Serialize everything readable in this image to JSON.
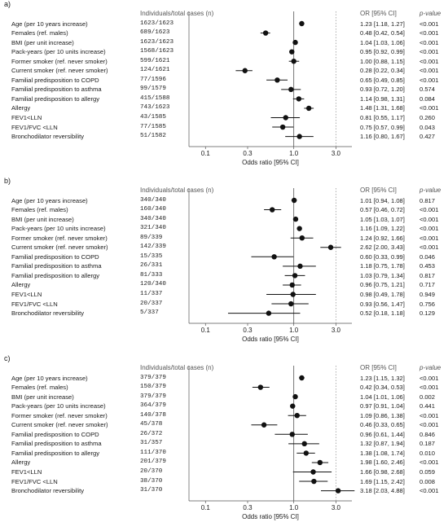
{
  "labels": {
    "col_individuals": "Individuals/total cases (n)",
    "col_or": "OR [95% CI]",
    "col_p": "p-value",
    "xlabel": "Odds ratio [95% CI]"
  },
  "colors": {
    "point": "#111111",
    "reference": "#555555",
    "dotted": "#9a9a9a"
  },
  "chart_data": [
    {
      "panel": "a)",
      "type": "forest",
      "x_scale": "log",
      "xlim": [
        0.1,
        3.0
      ],
      "xticks": [
        "0.1",
        "0.3",
        "1.0",
        "3.0"
      ],
      "xlabel": "Odds ratio [95% CI]",
      "rows": [
        {
          "label": "Age (per 10 years increase)",
          "n": "1623/1623",
          "or": 1.23,
          "lo": 1.18,
          "hi": 1.27,
          "or_text": "1.23 [1.18, 1.27]",
          "p": "<0.001"
        },
        {
          "label": "Females (ref. males)",
          "n": "689/1623",
          "or": 0.48,
          "lo": 0.42,
          "hi": 0.54,
          "or_text": "0.48 [0.42, 0.54]",
          "p": "<0.001"
        },
        {
          "label": "BMI (per unit increase)",
          "n": "1623/1623",
          "or": 1.04,
          "lo": 1.03,
          "hi": 1.06,
          "or_text": "1.04 [1.03, 1.06]",
          "p": "<0.001"
        },
        {
          "label": "Pack-years (per 10 units increase)",
          "n": "1568/1623",
          "or": 0.95,
          "lo": 0.92,
          "hi": 0.99,
          "or_text": "0.95 [0.92, 0.99]",
          "p": "<0.001"
        },
        {
          "label": "Former smoker (ref. never smoker)",
          "n": "599/1621",
          "or": 1.0,
          "lo": 0.88,
          "hi": 1.15,
          "or_text": "1.00 [0.88, 1.15]",
          "p": "<0.001"
        },
        {
          "label": "Current smoker (ref. never smoker)",
          "n": "124/1621",
          "or": 0.28,
          "lo": 0.22,
          "hi": 0.34,
          "or_text": "0.28 [0.22, 0.34]",
          "p": "<0.001"
        },
        {
          "label": "Familial predisposition to COPD",
          "n": "77/1596",
          "or": 0.65,
          "lo": 0.49,
          "hi": 0.85,
          "or_text": "0.65 [0.49, 0.85]",
          "p": "<0.001"
        },
        {
          "label": "Familial predisposition to asthma",
          "n": "99/1579",
          "or": 0.93,
          "lo": 0.72,
          "hi": 1.2,
          "or_text": "0.93 [0.72, 1.20]",
          "p": "0.574"
        },
        {
          "label": "Familial predisposition to allergy",
          "n": "415/1588",
          "or": 1.14,
          "lo": 0.98,
          "hi": 1.31,
          "or_text": "1.14 [0.98, 1.31]",
          "p": "0.084"
        },
        {
          "label": "Allergy",
          "n": "743/1623",
          "or": 1.48,
          "lo": 1.31,
          "hi": 1.68,
          "or_text": "1.48 [1.31, 1.68]",
          "p": "<0.001"
        },
        {
          "label": "FEV1<LLN",
          "n": "43/1585",
          "or": 0.81,
          "lo": 0.55,
          "hi": 1.17,
          "or_text": "0.81 [0.55, 1.17]",
          "p": "0.260"
        },
        {
          "label": "FEV1/FVC <LLN",
          "n": "77/1585",
          "or": 0.75,
          "lo": 0.57,
          "hi": 0.99,
          "or_text": "0.75 [0.57, 0.99]",
          "p": "0.043"
        },
        {
          "label": "Bronchodilator reversibility",
          "n": "51/1582",
          "or": 1.16,
          "lo": 0.8,
          "hi": 1.67,
          "or_text": "1.16 [0.80, 1.67]",
          "p": "0.427"
        }
      ]
    },
    {
      "panel": "b)",
      "type": "forest",
      "x_scale": "log",
      "xlim": [
        0.1,
        3.0
      ],
      "xticks": [
        "0.1",
        "0.3",
        "1.0",
        "3.0"
      ],
      "xlabel": "Odds ratio [95% CI]",
      "rows": [
        {
          "label": "Age (per 10 years increase)",
          "n": "340/340",
          "or": 1.01,
          "lo": 0.94,
          "hi": 1.08,
          "or_text": "1.01 [0.94, 1.08]",
          "p": "0.817"
        },
        {
          "label": "Females (ref. males)",
          "n": "160/340",
          "or": 0.57,
          "lo": 0.46,
          "hi": 0.72,
          "or_text": "0.57 [0.46, 0.72]",
          "p": "<0.001"
        },
        {
          "label": "BMI (per unit increase)",
          "n": "340/340",
          "or": 1.05,
          "lo": 1.03,
          "hi": 1.07,
          "or_text": "1.05 [1.03, 1.07]",
          "p": "<0.001"
        },
        {
          "label": "Pack-years (per 10 units increase)",
          "n": "321/340",
          "or": 1.16,
          "lo": 1.09,
          "hi": 1.22,
          "or_text": "1.16 [1.09, 1.22]",
          "p": "<0.001"
        },
        {
          "label": "Former smoker (ref. never smoker)",
          "n": "89/339",
          "or": 1.24,
          "lo": 0.92,
          "hi": 1.66,
          "or_text": "1.24 [0.92, 1.66]",
          "p": "<0.001"
        },
        {
          "label": "Current smoker (ref. never smoker)",
          "n": "142/339",
          "or": 2.62,
          "lo": 2.0,
          "hi": 3.43,
          "or_text": "2.62 [2.00, 3.43]",
          "p": "<0.001"
        },
        {
          "label": "Familial predisposition to COPD",
          "n": "15/335",
          "or": 0.6,
          "lo": 0.33,
          "hi": 0.99,
          "or_text": "0.60 [0.33, 0.99]",
          "p": "0.046"
        },
        {
          "label": "Familial predisposition to asthma",
          "n": "26/331",
          "or": 1.18,
          "lo": 0.75,
          "hi": 1.78,
          "or_text": "1.18 [0.75, 1.78]",
          "p": "0.453"
        },
        {
          "label": "Familial predisposition to allergy",
          "n": "81/333",
          "or": 1.03,
          "lo": 0.79,
          "hi": 1.34,
          "or_text": "1.03 [0.79, 1.34]",
          "p": "0.817"
        },
        {
          "label": "Allergy",
          "n": "120/340",
          "or": 0.96,
          "lo": 0.75,
          "hi": 1.21,
          "or_text": "0.96 [0.75, 1.21]",
          "p": "0.717"
        },
        {
          "label": "FEV1<LLN",
          "n": "11/337",
          "or": 0.98,
          "lo": 0.49,
          "hi": 1.78,
          "or_text": "0.98 [0.49, 1.78]",
          "p": "0.949"
        },
        {
          "label": "FEV1/FVC <LLN",
          "n": "20/337",
          "or": 0.93,
          "lo": 0.56,
          "hi": 1.47,
          "or_text": "0.93 [0.56, 1.47]",
          "p": "0.756"
        },
        {
          "label": "Bronchodilator reversibility",
          "n": "5/337",
          "or": 0.52,
          "lo": 0.18,
          "hi": 1.18,
          "or_text": "0.52 [0.18, 1.18]",
          "p": "0.129"
        }
      ]
    },
    {
      "panel": "c)",
      "type": "forest",
      "x_scale": "log",
      "xlim": [
        0.1,
        3.0
      ],
      "xticks": [
        "0.1",
        "0.3",
        "1.0",
        "3.0"
      ],
      "xlabel": "Odds ratio [95% CI]",
      "rows": [
        {
          "label": "Age (per 10 years increase)",
          "n": "379/379",
          "or": 1.23,
          "lo": 1.15,
          "hi": 1.32,
          "or_text": "1.23 [1.15, 1.32]",
          "p": "<0.001"
        },
        {
          "label": "Females (ref. males)",
          "n": "150/379",
          "or": 0.42,
          "lo": 0.34,
          "hi": 0.53,
          "or_text": "0.42 [0.34, 0.53]",
          "p": "<0.001"
        },
        {
          "label": "BMI (per unit increase)",
          "n": "379/379",
          "or": 1.04,
          "lo": 1.01,
          "hi": 1.06,
          "or_text": "1.04 [1.01, 1.06]",
          "p": "0.002"
        },
        {
          "label": "Pack-years (per 10 units increase)",
          "n": "364/379",
          "or": 0.97,
          "lo": 0.91,
          "hi": 1.04,
          "or_text": "0.97 [0.91, 1.04]",
          "p": "0.441"
        },
        {
          "label": "Former smoker (ref. never smoker)",
          "n": "140/378",
          "or": 1.09,
          "lo": 0.86,
          "hi": 1.38,
          "or_text": "1.09 [0.86, 1.38]",
          "p": "<0.001"
        },
        {
          "label": "Current smoker (ref. never smoker)",
          "n": "45/378",
          "or": 0.46,
          "lo": 0.33,
          "hi": 0.65,
          "or_text": "0.46 [0.33, 0.65]",
          "p": "<0.001"
        },
        {
          "label": "Familial predisposition to COPD",
          "n": "26/372",
          "or": 0.96,
          "lo": 0.61,
          "hi": 1.44,
          "or_text": "0.96 [0.61, 1.44]",
          "p": "0.846"
        },
        {
          "label": "Familial predisposition to asthma",
          "n": "31/357",
          "or": 1.32,
          "lo": 0.87,
          "hi": 1.94,
          "or_text": "1.32 [0.87, 1.94]",
          "p": "0.187"
        },
        {
          "label": "Familial predisposition to allergy",
          "n": "111/370",
          "or": 1.38,
          "lo": 1.08,
          "hi": 1.74,
          "or_text": "1.38 [1.08, 1.74]",
          "p": "0.010"
        },
        {
          "label": "Allergy",
          "n": "201/379",
          "or": 1.98,
          "lo": 1.6,
          "hi": 2.46,
          "or_text": "1.98 [1.60, 2.46]",
          "p": "<0.001"
        },
        {
          "label": "FEV1<LLN",
          "n": "20/370",
          "or": 1.66,
          "lo": 0.98,
          "hi": 2.68,
          "or_text": "1.66 [0.98, 2.68]",
          "p": "0.059"
        },
        {
          "label": "FEV1/FVC <LLN",
          "n": "38/370",
          "or": 1.69,
          "lo": 1.15,
          "hi": 2.42,
          "or_text": "1.69 [1.15, 2.42]",
          "p": "0.008"
        },
        {
          "label": "Bronchodilator reversibility",
          "n": "31/370",
          "or": 3.18,
          "lo": 2.03,
          "hi": 4.88,
          "or_text": "3.18 [2.03, 4.88]",
          "p": "<0.001"
        }
      ]
    }
  ]
}
